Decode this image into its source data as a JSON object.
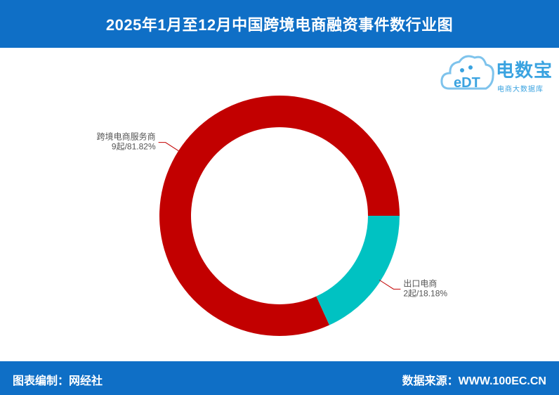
{
  "header": {
    "title": "2025年1月至12月中国跨境电商融资事件数行业图"
  },
  "logo": {
    "mark": "eDT",
    "name": "电数宝",
    "tagline": "电商大数据库"
  },
  "footer": {
    "credit": "图表编制：网经社",
    "source": "数据来源：WWW.100EC.CN"
  },
  "colors": {
    "band": "#0f6fc6",
    "series": [
      "#c20000",
      "#00c2c2"
    ],
    "leader": "#c20000",
    "logo": "#3aa3e0"
  },
  "chart_data": {
    "type": "pie",
    "donut": true,
    "title": "2025年1月至12月中国跨境电商融资事件数行业图",
    "slices": [
      {
        "label": "跨境电商服务商",
        "value": 9,
        "percent": 81.82,
        "display": "9起/81.82%"
      },
      {
        "label": "出口电商",
        "value": 2,
        "percent": 18.18,
        "display": "2起/18.18%"
      }
    ]
  }
}
